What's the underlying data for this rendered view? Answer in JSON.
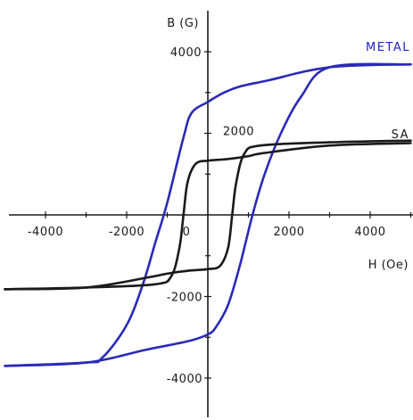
{
  "chart_data": {
    "type": "line",
    "title": "",
    "xlabel": "H (Oe)",
    "ylabel": "B (G)",
    "xlim": [
      -5000,
      5000
    ],
    "ylim": [
      -5000,
      5000
    ],
    "x_ticks": [
      -4000,
      -2000,
      0,
      2000,
      4000
    ],
    "x_tick_labels": [
      "-4000",
      "-2000",
      "0",
      "2000",
      "4000"
    ],
    "y_ticks": [
      -4000,
      -2000,
      2000,
      4000
    ],
    "y_tick_labels": [
      "-4000",
      "-2000",
      "2000",
      "4000"
    ],
    "grid": false,
    "legend": "none",
    "series": [
      {
        "name": "METAL",
        "color": "#2a2ab8",
        "label_color": "#1f1fc8",
        "upper_branch": [
          [
            -5000,
            -3700
          ],
          [
            -3000,
            -3620
          ],
          [
            -2600,
            -3500
          ],
          [
            -2000,
            -2700
          ],
          [
            -1600,
            -1700
          ],
          [
            -1300,
            -700
          ],
          [
            -1000,
            300
          ],
          [
            -600,
            1900
          ],
          [
            -400,
            2500
          ],
          [
            0,
            2770
          ],
          [
            400,
            3000
          ],
          [
            800,
            3150
          ],
          [
            1500,
            3300
          ],
          [
            3000,
            3620
          ],
          [
            5000,
            3690
          ]
        ],
        "lower_branch": [
          [
            -5000,
            -3700
          ],
          [
            -3000,
            -3620
          ],
          [
            -1500,
            -3300
          ],
          [
            -500,
            -3100
          ],
          [
            0,
            -2930
          ],
          [
            200,
            -2750
          ],
          [
            500,
            -2200
          ],
          [
            800,
            -1200
          ],
          [
            1100,
            0
          ],
          [
            1400,
            1000
          ],
          [
            1800,
            2000
          ],
          [
            2300,
            2900
          ],
          [
            3000,
            3620
          ],
          [
            5000,
            3690
          ]
        ]
      },
      {
        "name": "SA",
        "color": "#1a1a1a",
        "label_color": "#1a1a1a",
        "upper_branch": [
          [
            -5000,
            -1820
          ],
          [
            -3000,
            -1780
          ],
          [
            -1300,
            -1700
          ],
          [
            -900,
            -1500
          ],
          [
            -700,
            -800
          ],
          [
            -600,
            0
          ],
          [
            -500,
            800
          ],
          [
            -300,
            1250
          ],
          [
            0,
            1330
          ],
          [
            500,
            1370
          ],
          [
            1000,
            1440
          ],
          [
            1400,
            1520
          ],
          [
            3000,
            1700
          ],
          [
            5000,
            1760
          ]
        ],
        "lower_branch": [
          [
            -5000,
            -1820
          ],
          [
            -3000,
            -1780
          ],
          [
            -1400,
            -1520
          ],
          [
            -1000,
            -1440
          ],
          [
            -500,
            -1370
          ],
          [
            0,
            -1330
          ],
          [
            300,
            -1250
          ],
          [
            500,
            -800
          ],
          [
            600,
            0
          ],
          [
            700,
            800
          ],
          [
            900,
            1500
          ],
          [
            1300,
            1700
          ],
          [
            3000,
            1780
          ],
          [
            5000,
            1820
          ]
        ]
      }
    ]
  }
}
